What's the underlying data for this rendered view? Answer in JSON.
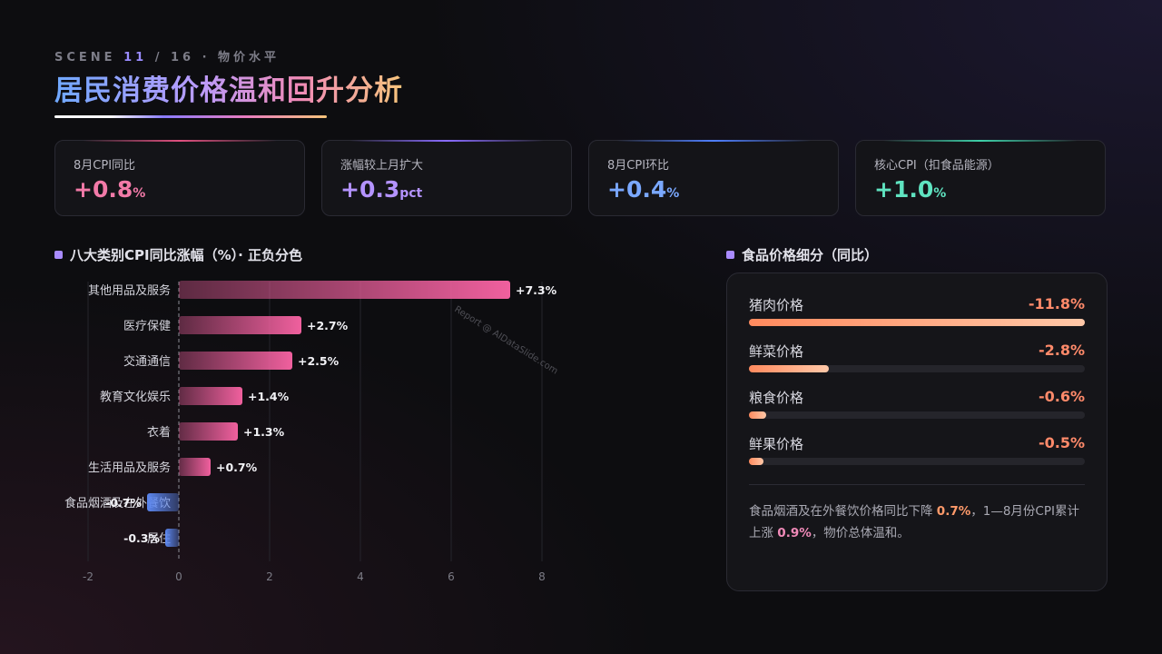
{
  "header": {
    "scene_prefix": "SCENE ",
    "scene_num": "11",
    "scene_suffix": " / 16 · 物价水平",
    "title": "居民消费价格温和回升分析"
  },
  "kpis": [
    {
      "label": "8月CPI同比",
      "value": "+0.8",
      "unit": "%",
      "color": "#f27aa8",
      "glow": "#e0507f"
    },
    {
      "label": "涨幅较上月扩大",
      "value": "+0.3",
      "unit": "pct",
      "color": "#b493ff",
      "glow": "#8a6cff"
    },
    {
      "label": "8月CPI环比",
      "value": "+0.4",
      "unit": "%",
      "color": "#7aa8ff",
      "glow": "#4f7fff"
    },
    {
      "label": "核心CPI（扣食品能源）",
      "value": "+1.0",
      "unit": "%",
      "color": "#5fe3c0",
      "glow": "#3ed0a8"
    }
  ],
  "left_section": {
    "title": "八大类别CPI同比涨幅（%）· 正负分色"
  },
  "right_section": {
    "title": "食品价格细分（同比）"
  },
  "chart_data": {
    "type": "bar",
    "orientation": "horizontal",
    "title": "八大类别CPI同比涨幅（%）· 正负分色",
    "categories": [
      "其他用品及服务",
      "医疗保健",
      "交通通信",
      "教育文化娱乐",
      "衣着",
      "生活用品及服务",
      "食品烟酒及在外餐饮",
      "居住"
    ],
    "values": [
      7.3,
      2.7,
      2.5,
      1.4,
      1.3,
      0.7,
      -0.7,
      -0.3
    ],
    "value_labels": [
      "+7.3%",
      "+2.7%",
      "+2.5%",
      "+1.4%",
      "+1.3%",
      "+0.7%",
      "-0.7%",
      "-0.3%"
    ],
    "xlim": [
      -2,
      9
    ],
    "xticks": [
      -2,
      0,
      2,
      4,
      6,
      8
    ],
    "grid": true,
    "positive_color": "#f0609e",
    "negative_color": "#5b86ee",
    "watermark": "Report @ AIDataSlide.com"
  },
  "food": {
    "items": [
      {
        "name": "猪肉价格",
        "value": "-11.8%",
        "magnitude": 11.8
      },
      {
        "name": "鲜菜价格",
        "value": "-2.8%",
        "magnitude": 2.8
      },
      {
        "name": "粮食价格",
        "value": "-0.6%",
        "magnitude": 0.6
      },
      {
        "name": "鲜果价格",
        "value": "-0.5%",
        "magnitude": 0.5
      }
    ],
    "scale_max": 11.8,
    "note": {
      "p1": "食品烟酒及在外餐饮价格同比下降 ",
      "h1": "0.7%",
      "p2": "，1—8月份CPI累计上涨 ",
      "h2": "0.9%",
      "p3": "，物价总体温和。"
    }
  }
}
